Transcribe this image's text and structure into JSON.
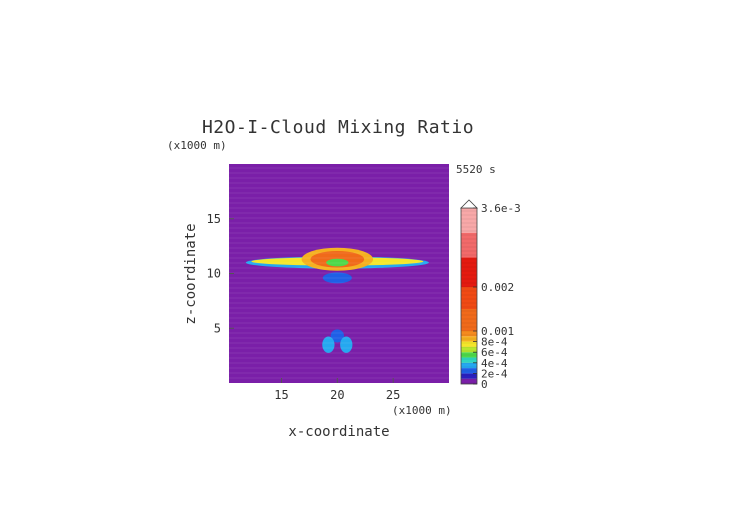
{
  "chart_data": {
    "type": "heatmap",
    "title": "H2O-I-Cloud Mixing Ratio",
    "time_label": "5520 s",
    "xlabel": "x-coordinate",
    "ylabel": "z-coordinate",
    "x_unit": "(x1000 m)",
    "y_unit": "(x1000 m)",
    "xlim": [
      10.3,
      30
    ],
    "ylim": [
      0,
      20
    ],
    "xticks": [
      15,
      20,
      25
    ],
    "yticks": [
      5,
      10,
      15
    ],
    "background_value": 0,
    "features": [
      {
        "name": "anvil-outer",
        "x_center": 20,
        "z_center": 11.0,
        "x_halfwidth": 8.2,
        "z_halfwidth": 0.55,
        "value": 0.0003
      },
      {
        "name": "anvil-body",
        "x_center": 20,
        "z_center": 11.1,
        "x_halfwidth": 7.7,
        "z_halfwidth": 0.38,
        "value": 0.0007
      },
      {
        "name": "dome-outer",
        "x_center": 20,
        "z_center": 11.3,
        "x_halfwidth": 3.2,
        "z_halfwidth": 1.05,
        "value": 0.0008
      },
      {
        "name": "core",
        "x_center": 20,
        "z_center": 11.3,
        "x_halfwidth": 2.4,
        "z_halfwidth": 0.75,
        "value": 0.001
      },
      {
        "name": "core-inner",
        "x_center": 20,
        "z_center": 11.0,
        "x_halfwidth": 1.0,
        "z_halfwidth": 0.35,
        "value": 0.0005
      },
      {
        "name": "lower-arc",
        "x_center": 20,
        "z_center": 9.6,
        "x_halfwidth": 1.3,
        "z_halfwidth": 0.5,
        "value": 0.00025
      },
      {
        "name": "low-blob-top",
        "x_center": 20,
        "z_center": 4.3,
        "x_halfwidth": 0.6,
        "z_halfwidth": 0.6,
        "value": 0.0002
      },
      {
        "name": "low-blob-left",
        "x_center": 19.2,
        "z_center": 3.5,
        "x_halfwidth": 0.55,
        "z_halfwidth": 0.75,
        "value": 0.0003
      },
      {
        "name": "low-blob-right",
        "x_center": 20.8,
        "z_center": 3.5,
        "x_halfwidth": 0.55,
        "z_halfwidth": 0.75,
        "value": 0.0003
      }
    ],
    "colorbar": {
      "min": 0,
      "max": 0.0036,
      "tick_labels": [
        {
          "value": 0,
          "label": "0"
        },
        {
          "value": 0.0002,
          "label": "2e-4"
        },
        {
          "value": 0.0004,
          "label": "4e-4"
        },
        {
          "value": 0.0006,
          "label": "6e-4"
        },
        {
          "value": 0.0008,
          "label": "8e-4"
        },
        {
          "value": 0.001,
          "label": "0.001"
        },
        {
          "value": 0.002,
          "label": "0.002"
        },
        {
          "value": 0.0036,
          "label": "3.6e-3"
        }
      ],
      "levels": [
        {
          "value": 0,
          "color": "#7a1fa8"
        },
        {
          "value": 0.0001,
          "color": "#2a1fbf"
        },
        {
          "value": 0.0002,
          "color": "#1f5fe6"
        },
        {
          "value": 0.0003,
          "color": "#25a8f0"
        },
        {
          "value": 0.0004,
          "color": "#30d6c0"
        },
        {
          "value": 0.0005,
          "color": "#4fd84a"
        },
        {
          "value": 0.0006,
          "color": "#b8e62e"
        },
        {
          "value": 0.0007,
          "color": "#f5e62a"
        },
        {
          "value": 0.0008,
          "color": "#f5b020"
        },
        {
          "value": 0.0009,
          "color": "#f58a1e"
        },
        {
          "value": 0.001,
          "color": "#f06a1a"
        },
        {
          "value": 0.0015,
          "color": "#f04a14"
        },
        {
          "value": 0.002,
          "color": "#e41a10"
        },
        {
          "value": 0.0026,
          "color": "#f26a6a"
        },
        {
          "value": 0.0031,
          "color": "#f8a8a8"
        }
      ]
    }
  }
}
